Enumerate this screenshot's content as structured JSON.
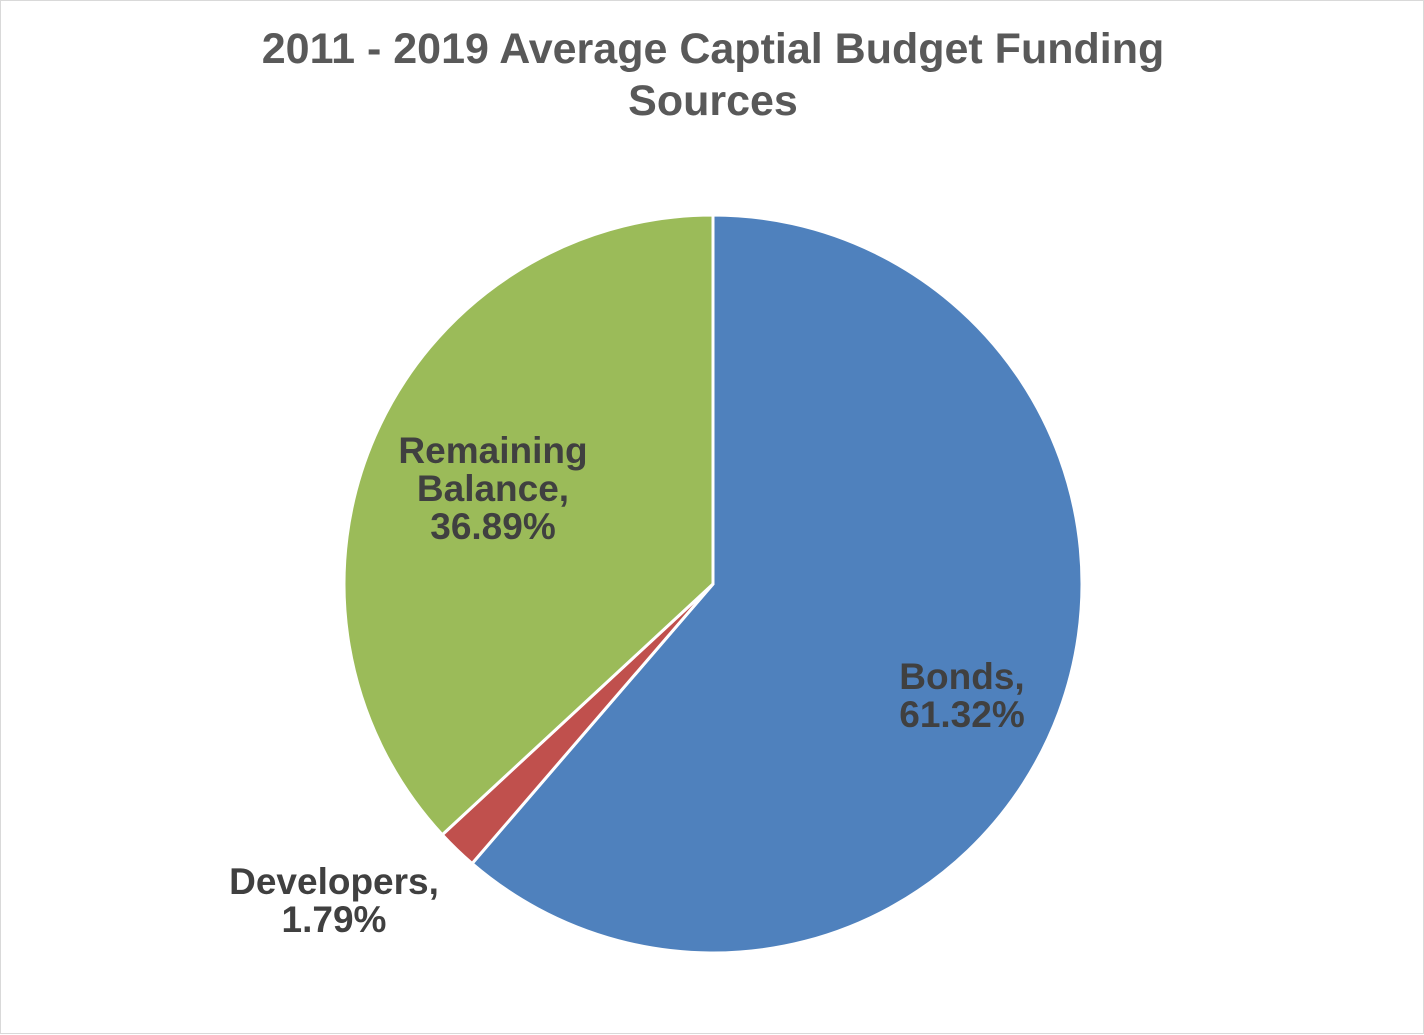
{
  "chart_data": {
    "type": "pie",
    "title": "2011 - 2019 Average Captial Budget Funding Sources",
    "title_lines": [
      "2011 - 2019 Average Captial Budget Funding",
      "Sources"
    ],
    "slices": [
      {
        "name": "Bonds",
        "value": 61.32,
        "color": "#4F81BD",
        "label_lines": [
          "Bonds,",
          "61.32%"
        ]
      },
      {
        "name": "Developers",
        "value": 1.79,
        "color": "#C0504D",
        "label_lines": [
          "Developers,",
          "1.79%"
        ]
      },
      {
        "name": "Remaining Balance",
        "value": 36.89,
        "color": "#9BBB59",
        "label_lines": [
          "Remaining",
          "Balance,",
          "36.89%"
        ]
      }
    ],
    "legend": "none",
    "label_color": "#404040",
    "title_color": "#595959"
  }
}
